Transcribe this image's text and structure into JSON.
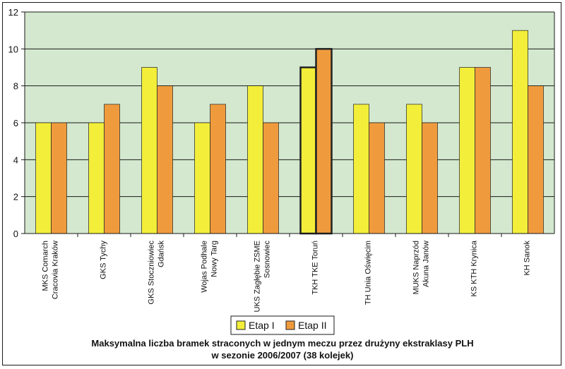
{
  "chart_data": {
    "type": "bar",
    "title": "Maksymalna liczba bramek straconych w jednym meczu przez drużyny ekstraklasy PLH",
    "subtitle": "w sezonie 2006/2007 (38 kolejek)",
    "xlabel": "",
    "ylabel": "",
    "ylim": [
      0,
      12
    ],
    "yticks": [
      0,
      2,
      4,
      6,
      8,
      10,
      12
    ],
    "grid": true,
    "legend_position": "bottom",
    "categories": [
      [
        "MKS Comarch",
        "Cracovia Kraków"
      ],
      [
        "GKS Tychy"
      ],
      [
        "GKS Stoczniowiec",
        "Gdańsk"
      ],
      [
        "Wojas Podhale",
        "Nowy Targ"
      ],
      [
        "UKS Zagłębie ZSME",
        "Sosnowiec"
      ],
      [
        "TKH TKE Toruń"
      ],
      [
        "TH Unia Oświęcim"
      ],
      [
        "MUKS Naprzód",
        "Akuna Janów"
      ],
      [
        "KS KTH Krynica"
      ],
      [
        "KH Sanok"
      ]
    ],
    "highlight_index": 5,
    "series": [
      {
        "name": "Etap I",
        "color": "#F2EE3A",
        "values": [
          6,
          6,
          9,
          6,
          8,
          9,
          7,
          7,
          9,
          11
        ]
      },
      {
        "name": "Etap II",
        "color": "#EF9B3D",
        "values": [
          6,
          7,
          8,
          7,
          6,
          10,
          6,
          6,
          9,
          8
        ]
      }
    ],
    "colors": {
      "plot_background": "#D3E8CF",
      "grid": "#1a1a1a",
      "axis": "#1a1a1a"
    }
  }
}
